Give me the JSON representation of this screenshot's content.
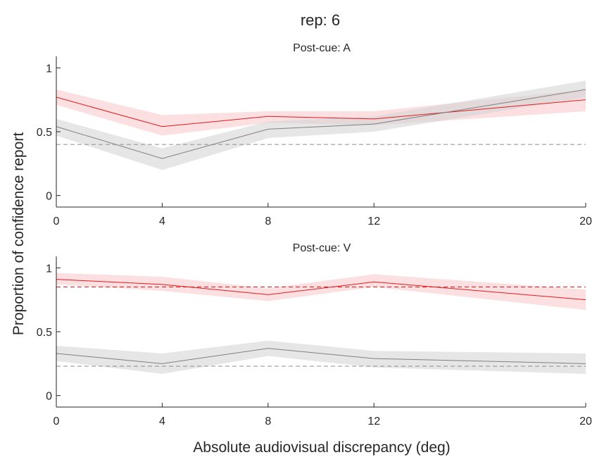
{
  "figure_title": "rep: 6",
  "xlabel": "Absolute audiovisual discrepancy (deg)",
  "ylabel": "Proportion of confidence report",
  "colors": {
    "red": "#e41a1c",
    "gray": "#7f7f7f",
    "dash": "#8c8c8c",
    "red_band": "#f9c9cd",
    "gray_band": "#d6d6d6"
  },
  "chart_data": [
    {
      "type": "line",
      "title": "Post-cue: A",
      "x": [
        0,
        4,
        8,
        12,
        20
      ],
      "x_ticks": [
        "0",
        "4",
        "8",
        "12",
        "20"
      ],
      "xlim": [
        0,
        20
      ],
      "ylim": [
        -0.09,
        1.09
      ],
      "y_ticks": [
        0,
        0.5,
        1
      ],
      "y_tick_labels": [
        "0",
        "0.5",
        "1"
      ],
      "series": [
        {
          "color": "red",
          "values": [
            0.77,
            0.54,
            0.62,
            0.6,
            0.75
          ],
          "lower": [
            0.71,
            0.47,
            0.57,
            0.55,
            0.66
          ],
          "upper": [
            0.83,
            0.63,
            0.66,
            0.66,
            0.83
          ]
        },
        {
          "color": "gray",
          "values": [
            0.54,
            0.29,
            0.52,
            0.56,
            0.83
          ],
          "lower": [
            0.47,
            0.2,
            0.45,
            0.5,
            0.77
          ],
          "upper": [
            0.6,
            0.37,
            0.58,
            0.62,
            0.9
          ]
        }
      ],
      "reference_lines": [
        {
          "color": "dash",
          "y": 0.4
        }
      ]
    },
    {
      "type": "line",
      "title": "Post-cue: V",
      "x": [
        0,
        4,
        8,
        12,
        20
      ],
      "x_ticks": [
        "0",
        "4",
        "8",
        "12",
        "20"
      ],
      "xlim": [
        0,
        20
      ],
      "ylim": [
        -0.09,
        1.09
      ],
      "y_ticks": [
        0,
        0.5,
        1
      ],
      "y_tick_labels": [
        "0",
        "0.5",
        "1"
      ],
      "series": [
        {
          "color": "red",
          "values": [
            0.91,
            0.87,
            0.79,
            0.89,
            0.75
          ],
          "lower": [
            0.87,
            0.82,
            0.74,
            0.85,
            0.67
          ],
          "upper": [
            0.96,
            0.93,
            0.84,
            0.95,
            0.83
          ]
        },
        {
          "color": "gray",
          "values": [
            0.33,
            0.25,
            0.37,
            0.29,
            0.25
          ],
          "lower": [
            0.27,
            0.17,
            0.31,
            0.22,
            0.17
          ],
          "upper": [
            0.39,
            0.33,
            0.43,
            0.35,
            0.33
          ]
        }
      ],
      "reference_lines": [
        {
          "color": "red",
          "y": 0.85
        },
        {
          "color": "dash",
          "y": 0.23
        }
      ]
    }
  ]
}
